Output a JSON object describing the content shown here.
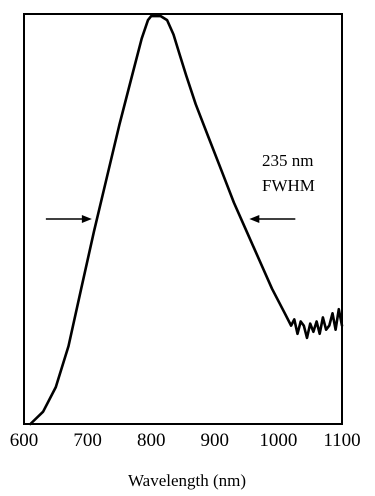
{
  "chart_data": {
    "type": "line",
    "title": "",
    "xlabel": "Wavelength (nm)",
    "ylabel": "",
    "xlim": [
      600,
      1100
    ],
    "ylim": [
      0,
      1
    ],
    "x_ticks": [
      "600",
      "700",
      "800",
      "900",
      "1000",
      "1100"
    ],
    "grid": false,
    "legend": "none",
    "series": [
      {
        "color": "#000000",
        "x": [
          610,
          630,
          650,
          670,
          690,
          710,
          730,
          750,
          770,
          785,
          795,
          800,
          805,
          815,
          825,
          835,
          845,
          855,
          870,
          890,
          910,
          930,
          950,
          970,
          990,
          1010,
          1020,
          1025,
          1030,
          1035,
          1040,
          1045,
          1050,
          1055,
          1060,
          1065,
          1070,
          1075,
          1080,
          1085,
          1090,
          1095,
          1100
        ],
        "y": [
          0.0,
          0.03,
          0.09,
          0.19,
          0.33,
          0.47,
          0.6,
          0.73,
          0.85,
          0.94,
          0.985,
          0.995,
          0.995,
          0.995,
          0.985,
          0.95,
          0.9,
          0.85,
          0.78,
          0.7,
          0.62,
          0.54,
          0.47,
          0.4,
          0.33,
          0.27,
          0.24,
          0.255,
          0.22,
          0.25,
          0.24,
          0.21,
          0.245,
          0.225,
          0.25,
          0.22,
          0.26,
          0.23,
          0.24,
          0.27,
          0.23,
          0.28,
          0.24
        ]
      }
    ],
    "annotations": [
      {
        "text": [
          "235 nm",
          "FWHM"
        ]
      }
    ],
    "fwhm_markers": {
      "left_x": 713,
      "right_x": 948,
      "y": 0.5
    }
  }
}
